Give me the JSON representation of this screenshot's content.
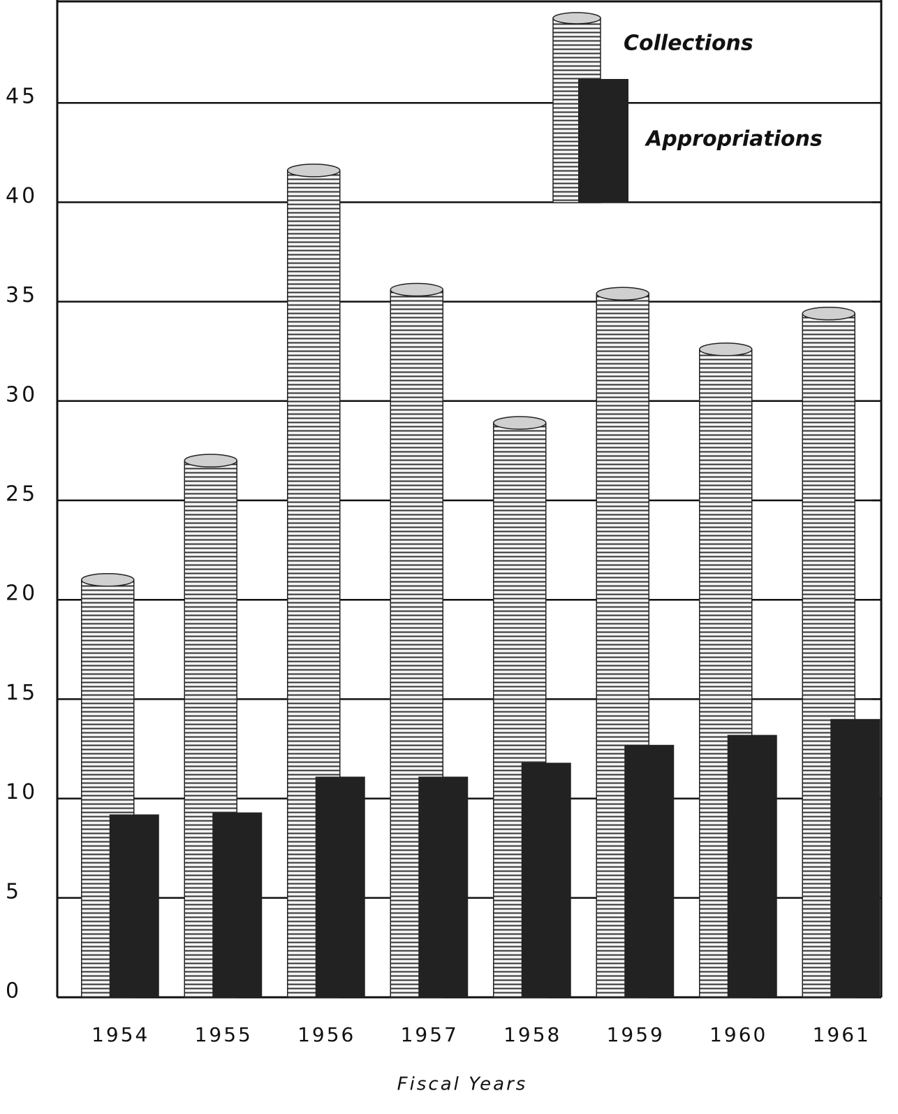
{
  "chart_data": {
    "type": "bar",
    "x_label": "Fiscal Years",
    "categories": [
      "1954",
      "1955",
      "1956",
      "1957",
      "1958",
      "1959",
      "1960",
      "1961"
    ],
    "series": [
      {
        "name": "Collections",
        "color": "#d0d0d0",
        "values": [
          21,
          27,
          41.6,
          35.6,
          28.9,
          35.4,
          32.6,
          34.4
        ]
      },
      {
        "name": "Appropriations",
        "color": "#222222",
        "values": [
          9.2,
          9.3,
          11.1,
          11.1,
          11.8,
          12.7,
          13.2,
          14.0
        ]
      }
    ],
    "ylim": [
      0,
      50
    ],
    "yticks": [
      0,
      5,
      10,
      15,
      20,
      25,
      30,
      35,
      40,
      45
    ],
    "grid": true
  }
}
